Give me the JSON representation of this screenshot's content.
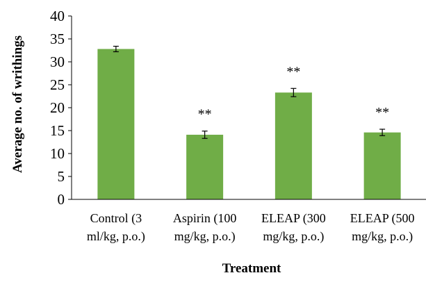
{
  "chart_data": {
    "type": "bar",
    "title": "",
    "xlabel": "Treatment",
    "ylabel": "Average no. of writhings",
    "ylim": [
      0,
      40
    ],
    "yticks": [
      0,
      5,
      10,
      15,
      20,
      25,
      30,
      35,
      40
    ],
    "grid": false,
    "bar_color": "#70ad47",
    "categories": [
      [
        "Control (3",
        "ml/kg, p.o.)"
      ],
      [
        "Aspirin (100",
        "mg/kg, p.o.)"
      ],
      [
        "ELEAP (300",
        "mg/kg, p.o.)"
      ],
      [
        "ELEAP (500",
        "mg/kg, p.o.)"
      ]
    ],
    "values": [
      32.8,
      14.1,
      23.3,
      14.6
    ],
    "errors": [
      0.6,
      0.8,
      0.9,
      0.7
    ],
    "significance": [
      "",
      "**",
      "**",
      "**"
    ]
  }
}
